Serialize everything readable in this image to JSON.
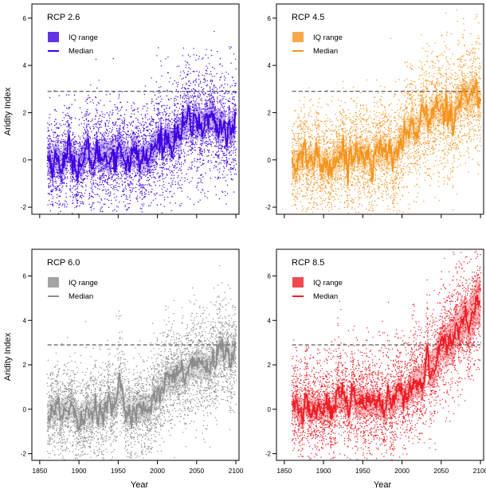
{
  "figure": {
    "ylabel": "Aridity Index",
    "xlabel": "Year"
  },
  "chart_data": [
    {
      "type": "line",
      "title": "RCP 2.6",
      "color": "#3f00e0",
      "legend": [
        "IQ range",
        "Median"
      ],
      "legend_position": "top-left",
      "x_range": [
        1860,
        2100
      ],
      "ylim": [
        -2.3,
        6.6
      ],
      "xticks": [
        1850,
        1900,
        1950,
        2000,
        2050,
        2100
      ],
      "yticks": [
        -2,
        0,
        2,
        4,
        6
      ],
      "reference_line": 2.9,
      "median": {
        "x": [
          1860,
          1870,
          1880,
          1890,
          1900,
          1910,
          1920,
          1930,
          1940,
          1950,
          1960,
          1970,
          1980,
          1990,
          2000,
          2010,
          2020,
          2030,
          2040,
          2050,
          2060,
          2070,
          2080,
          2090,
          2100
        ],
        "y": [
          0.1,
          -0.1,
          0.0,
          0.2,
          -0.1,
          0.0,
          0.1,
          0.2,
          0.3,
          0.4,
          0.2,
          0.1,
          0.0,
          0.1,
          0.7,
          0.9,
          1.0,
          1.2,
          1.5,
          1.7,
          1.5,
          1.8,
          1.4,
          1.2,
          1.3
        ]
      },
      "iq_low": [
        -0.6,
        -0.7,
        -0.6,
        -0.5,
        -0.7,
        -0.6,
        -0.5,
        -0.4,
        -0.3,
        -0.2,
        -0.4,
        -0.5,
        -0.6,
        -0.5,
        0.1,
        0.3,
        0.4,
        0.6,
        0.8,
        1.0,
        0.9,
        1.1,
        0.8,
        0.6,
        0.7
      ],
      "iq_high": [
        0.8,
        0.6,
        0.7,
        0.9,
        0.6,
        0.7,
        0.8,
        0.9,
        1.0,
        1.1,
        0.9,
        0.8,
        0.7,
        0.8,
        1.4,
        1.6,
        1.7,
        1.9,
        2.2,
        2.4,
        2.2,
        2.5,
        2.1,
        1.9,
        2.0
      ],
      "scatter_spread": 2.2,
      "scatter_per_year": 18
    },
    {
      "type": "line",
      "title": "RCP 4.5",
      "color": "#f5941d",
      "legend": [
        "IQ range",
        "Median"
      ],
      "legend_position": "top-left",
      "x_range": [
        1860,
        2100
      ],
      "ylim": [
        -2.3,
        6.6
      ],
      "xticks": [
        1850,
        1900,
        1950,
        2000,
        2050,
        2100
      ],
      "yticks": [
        -2,
        0,
        2,
        4,
        6
      ],
      "reference_line": 2.9,
      "median": {
        "x": [
          1860,
          1870,
          1880,
          1890,
          1900,
          1910,
          1920,
          1930,
          1940,
          1950,
          1960,
          1970,
          1980,
          1990,
          2000,
          2010,
          2020,
          2030,
          2040,
          2050,
          2060,
          2070,
          2080,
          2090,
          2100
        ],
        "y": [
          -0.2,
          -0.1,
          0.0,
          0.1,
          -0.2,
          0.0,
          0.2,
          0.1,
          0.3,
          0.4,
          0.2,
          0.3,
          0.1,
          0.3,
          1.0,
          1.2,
          1.5,
          1.8,
          2.0,
          2.2,
          2.1,
          2.4,
          2.8,
          2.7,
          2.6
        ]
      },
      "iq_low": [
        -0.8,
        -0.7,
        -0.6,
        -0.5,
        -0.8,
        -0.6,
        -0.4,
        -0.5,
        -0.3,
        -0.2,
        -0.4,
        -0.3,
        -0.5,
        -0.3,
        0.4,
        0.6,
        0.9,
        1.2,
        1.4,
        1.6,
        1.5,
        1.8,
        2.1,
        2.0,
        1.9
      ],
      "iq_high": [
        0.4,
        0.5,
        0.6,
        0.7,
        0.4,
        0.6,
        0.8,
        0.7,
        0.9,
        1.0,
        0.8,
        0.9,
        0.7,
        0.9,
        1.6,
        1.8,
        2.1,
        2.4,
        2.6,
        2.8,
        2.8,
        3.0,
        3.4,
        3.3,
        3.2
      ],
      "scatter_spread": 2.2,
      "scatter_per_year": 18
    },
    {
      "type": "line",
      "title": "RCP 6.0",
      "color": "#8c8c8c",
      "legend": [
        "IQ range",
        "Median"
      ],
      "legend_position": "top-left",
      "x_range": [
        1860,
        2100
      ],
      "ylim": [
        -2.3,
        7.2
      ],
      "xticks": [
        1850,
        1900,
        1950,
        2000,
        2050,
        2100
      ],
      "xtick_labels": [
        "1850",
        "1900",
        "1950",
        "2000",
        "2050",
        "2100"
      ],
      "yticks": [
        -2,
        0,
        2,
        4,
        6
      ],
      "reference_line": 2.9,
      "median": {
        "x": [
          1860,
          1870,
          1880,
          1890,
          1900,
          1910,
          1920,
          1930,
          1940,
          1950,
          1960,
          1970,
          1980,
          1990,
          2000,
          2010,
          2020,
          2030,
          2040,
          2050,
          2060,
          2070,
          2080,
          2090,
          2100
        ],
        "y": [
          0.0,
          -0.1,
          0.0,
          0.2,
          -0.2,
          0.0,
          0.1,
          0.0,
          0.2,
          0.3,
          0.1,
          0.2,
          0.0,
          0.2,
          0.7,
          1.0,
          1.2,
          1.5,
          1.6,
          1.8,
          2.0,
          2.2,
          2.4,
          2.6,
          2.9
        ]
      },
      "iq_low": [
        -0.6,
        -0.7,
        -0.6,
        -0.4,
        -0.8,
        -0.6,
        -0.5,
        -0.6,
        -0.4,
        -0.3,
        -0.5,
        -0.4,
        -0.6,
        -0.4,
        0.1,
        0.4,
        0.6,
        0.9,
        1.0,
        1.2,
        1.4,
        1.6,
        1.8,
        2.0,
        2.2
      ],
      "iq_high": [
        0.6,
        0.5,
        0.6,
        0.8,
        0.4,
        0.6,
        0.7,
        0.6,
        0.8,
        0.9,
        0.7,
        0.8,
        0.6,
        0.8,
        1.3,
        1.6,
        1.8,
        2.1,
        2.2,
        2.4,
        2.6,
        2.8,
        3.0,
        3.2,
        3.6
      ],
      "scatter_spread": 2.2,
      "scatter_per_year": 18
    },
    {
      "type": "line",
      "title": "RCP 8.5",
      "color": "#ee1c25",
      "legend": [
        "IQ range",
        "Median"
      ],
      "legend_position": "top-left",
      "x_range": [
        1860,
        2100
      ],
      "ylim": [
        -2.3,
        7.2
      ],
      "xticks": [
        1850,
        1900,
        1950,
        2000,
        2050,
        2100
      ],
      "xtick_labels": [
        "1850",
        "1900",
        "1950",
        "2000",
        "2050",
        "2100"
      ],
      "yticks": [
        -2,
        0,
        2,
        4,
        6
      ],
      "reference_line": 2.9,
      "median": {
        "x": [
          1860,
          1870,
          1880,
          1890,
          1900,
          1910,
          1920,
          1930,
          1940,
          1950,
          1960,
          1970,
          1980,
          1990,
          2000,
          2010,
          2020,
          2030,
          2040,
          2050,
          2060,
          2070,
          2080,
          2090,
          2100
        ],
        "y": [
          0.0,
          -0.1,
          0.0,
          0.1,
          -0.1,
          0.0,
          0.2,
          0.1,
          0.2,
          0.3,
          0.1,
          0.2,
          0.0,
          0.2,
          0.6,
          0.9,
          1.3,
          1.7,
          2.2,
          2.7,
          3.2,
          3.6,
          4.0,
          4.4,
          4.9
        ]
      },
      "iq_low": [
        -0.6,
        -0.7,
        -0.6,
        -0.5,
        -0.7,
        -0.6,
        -0.4,
        -0.5,
        -0.4,
        -0.3,
        -0.5,
        -0.4,
        -0.6,
        -0.4,
        0.0,
        0.3,
        0.6,
        1.0,
        1.4,
        1.8,
        2.3,
        2.6,
        3.0,
        3.3,
        3.8
      ],
      "iq_high": [
        0.6,
        0.5,
        0.6,
        0.7,
        0.5,
        0.6,
        0.8,
        0.7,
        0.8,
        0.9,
        0.7,
        0.8,
        0.6,
        0.8,
        1.2,
        1.5,
        2.0,
        2.4,
        3.0,
        3.5,
        4.1,
        4.6,
        5.0,
        5.5,
        6.0
      ],
      "scatter_spread": 2.4,
      "scatter_per_year": 18
    }
  ]
}
